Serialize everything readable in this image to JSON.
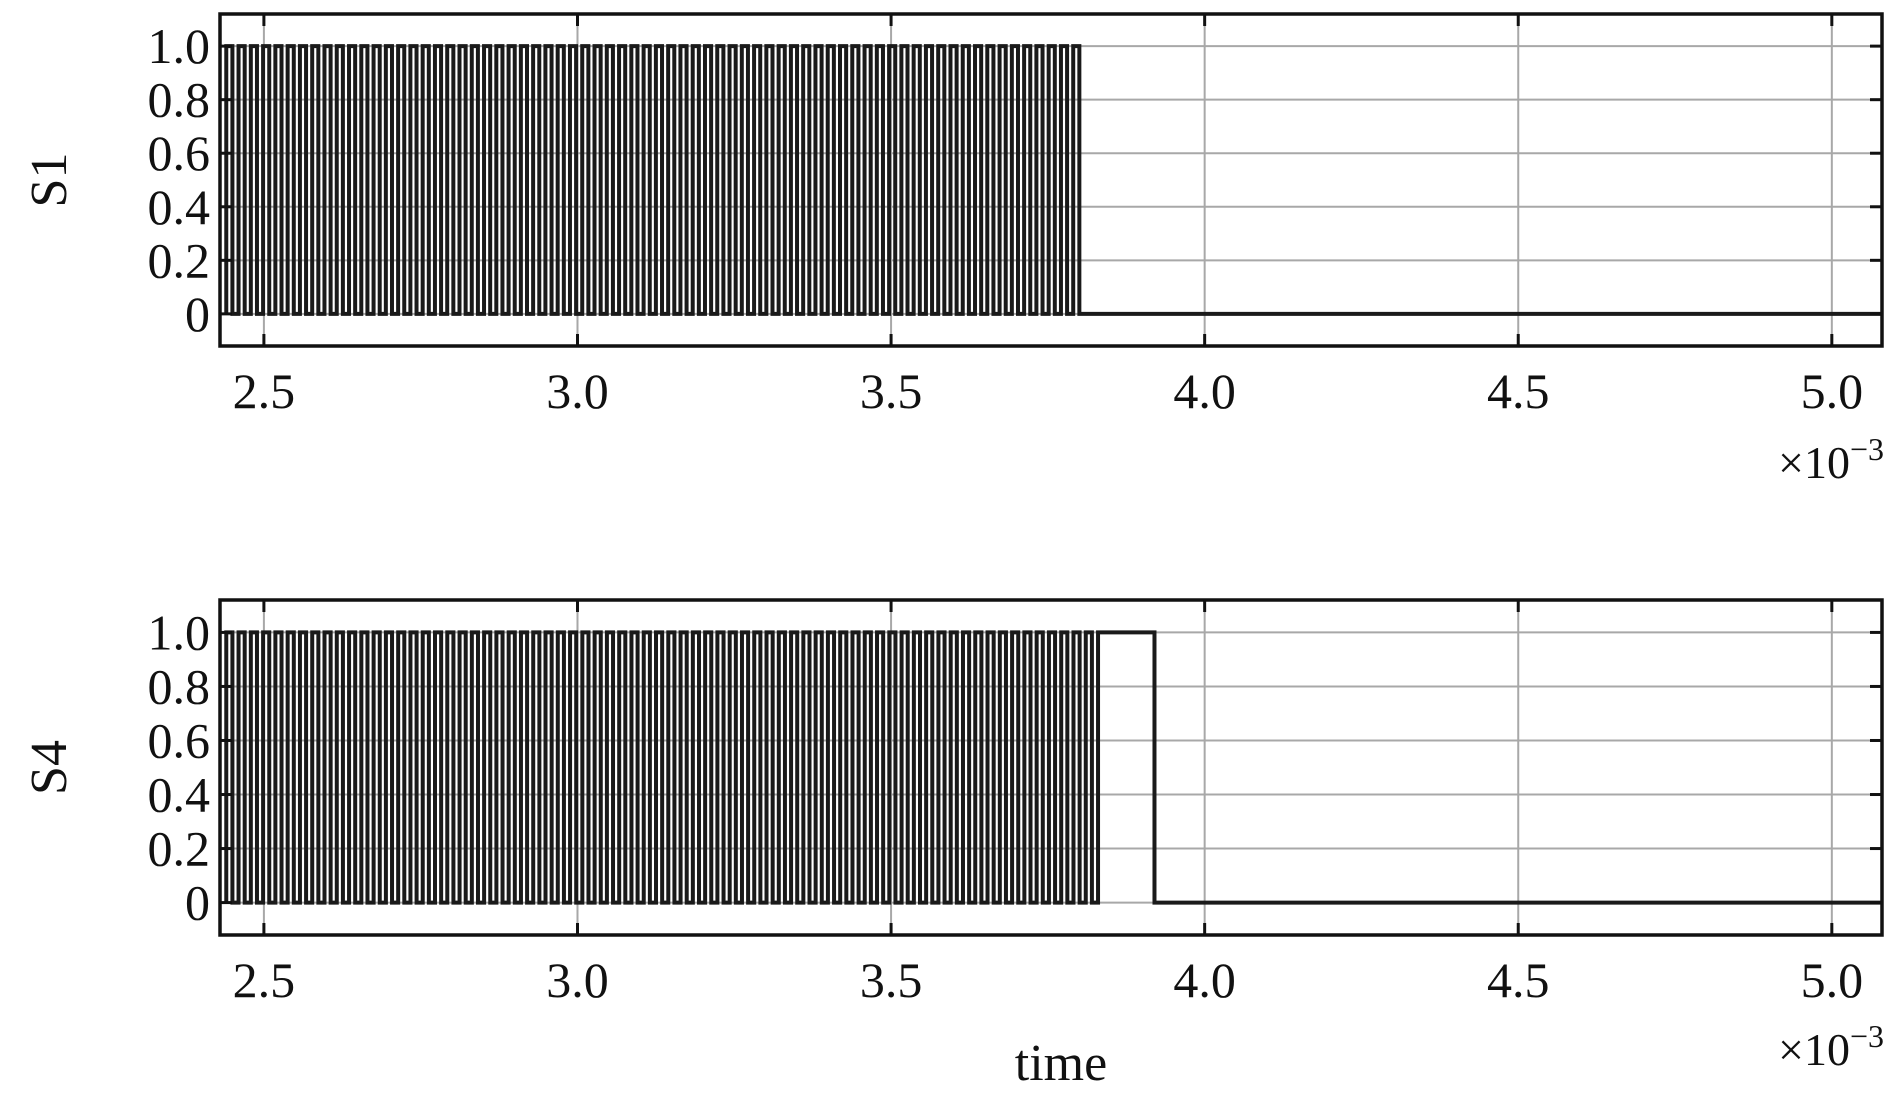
{
  "chart_data": [
    {
      "type": "line",
      "ylabel": "S1",
      "xlabel": "",
      "x_multiplier": "×10",
      "x_multiplier_exp": "−3",
      "xlim": [
        2.43,
        5.08
      ],
      "ylim": [
        -0.12,
        1.12
      ],
      "xticks": [
        2.5,
        3.0,
        3.5,
        4.0,
        4.5,
        5.0
      ],
      "xtick_labels": [
        "2.5",
        "3.0",
        "3.5",
        "4.0",
        "4.5",
        "5.0"
      ],
      "yticks": [
        0,
        0.2,
        0.4,
        0.6,
        0.8,
        1.0
      ],
      "ytick_labels": [
        "0",
        "0.2",
        "0.4",
        "0.6",
        "0.8",
        "1.0"
      ],
      "grid": true,
      "series": [
        {
          "signal": "pulse_train",
          "pulse_start": 2.44,
          "pulse_end": 3.81,
          "pulse_count": 70,
          "duty": 0.5,
          "high": 1.0,
          "low": 0.0,
          "final_value": 0.0,
          "x_end": 5.08
        }
      ]
    },
    {
      "type": "line",
      "ylabel": "S4",
      "xlabel": "time",
      "x_multiplier": "×10",
      "x_multiplier_exp": "−3",
      "xlim": [
        2.43,
        5.08
      ],
      "ylim": [
        -0.12,
        1.12
      ],
      "xticks": [
        2.5,
        3.0,
        3.5,
        4.0,
        4.5,
        5.0
      ],
      "xtick_labels": [
        "2.5",
        "3.0",
        "3.5",
        "4.0",
        "4.5",
        "5.0"
      ],
      "yticks": [
        0,
        0.2,
        0.4,
        0.6,
        0.8,
        1.0
      ],
      "ytick_labels": [
        "0",
        "0.2",
        "0.4",
        "0.6",
        "0.8",
        "1.0"
      ],
      "grid": true,
      "series": [
        {
          "signal": "pulse_train",
          "pulse_start": 2.44,
          "pulse_end": 3.83,
          "pulse_count": 71,
          "duty": 0.5,
          "high": 1.0,
          "low": 0.0,
          "extra_pulse": [
            3.83,
            3.92
          ],
          "final_value": 0.0,
          "x_end": 5.08
        }
      ]
    }
  ]
}
